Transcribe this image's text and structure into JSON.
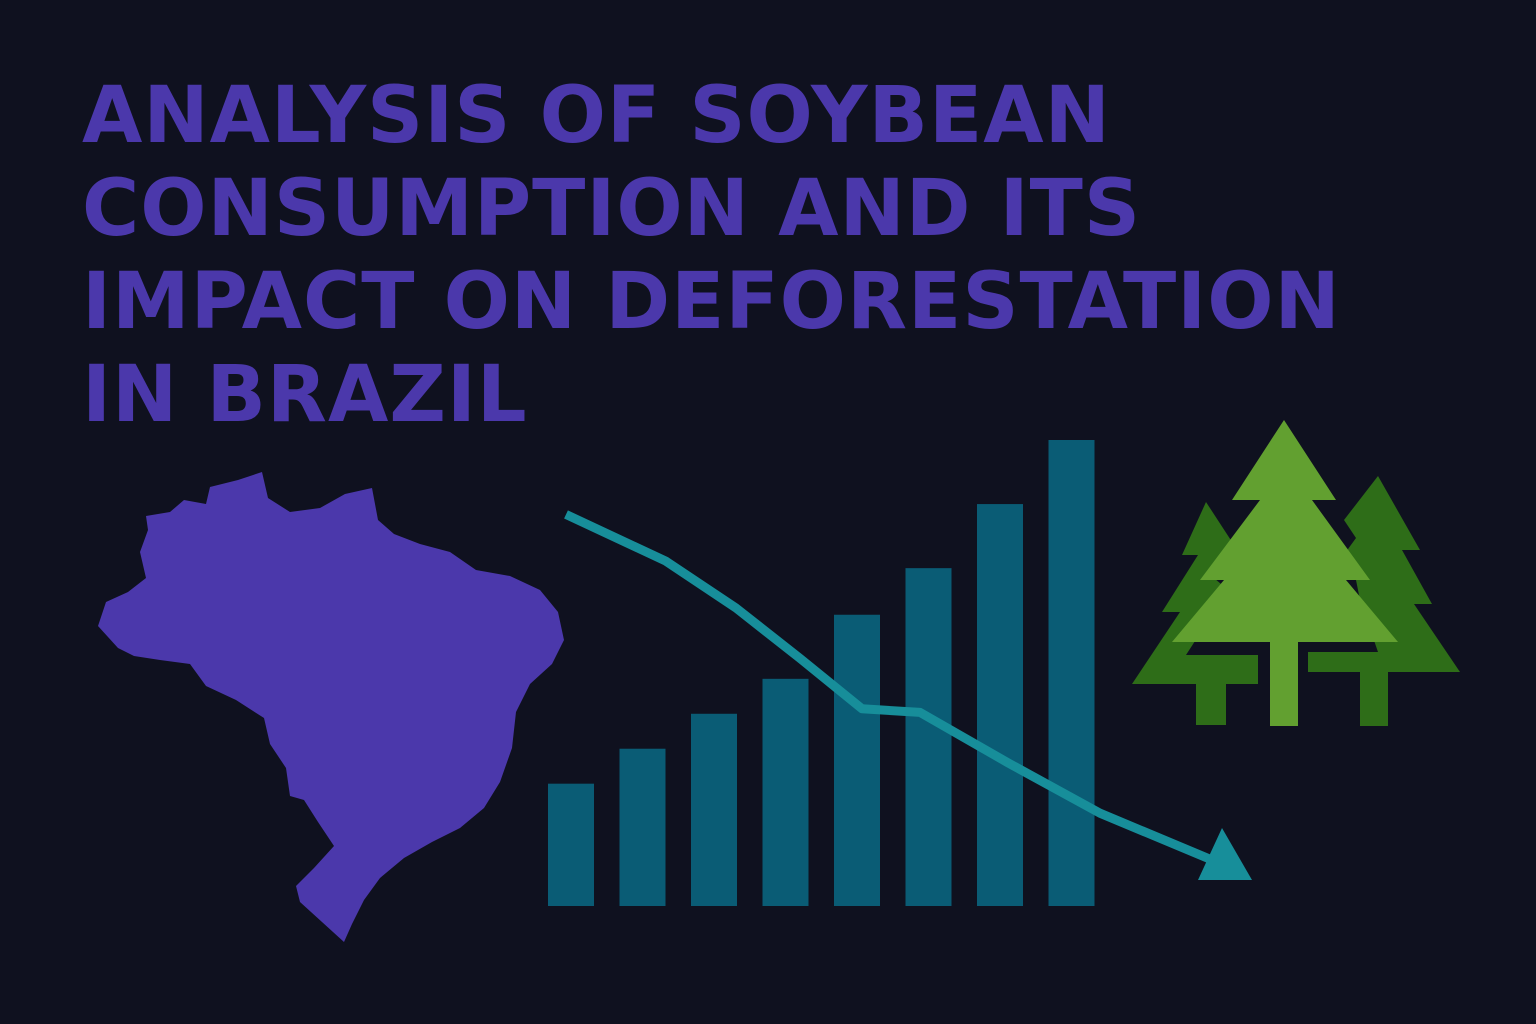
{
  "title": {
    "line1": "ANALYSIS OF SOYBEAN",
    "line2": "CONSUMPTION AND ITS",
    "line3": "IMPACT ON DEFORESTATION",
    "line4": "IN BRAZIL"
  },
  "colors": {
    "background": "#0f111f",
    "title": "#4b38ab",
    "map": "#4b38ab",
    "bars": "#0a5c75",
    "trend_line": "#178e9a",
    "tree_light": "#62a030",
    "tree_dark": "#2e6d18"
  },
  "icons": {
    "map": "brazil-map-icon",
    "trees": "pine-trees-icon",
    "trend": "down-trend-arrow-icon"
  },
  "chart_data": {
    "type": "bar",
    "bar_values": [
      21,
      27,
      33,
      39,
      50,
      58,
      69,
      80
    ],
    "trend_values": [
      96,
      83,
      70,
      56,
      42,
      41,
      27,
      13,
      0
    ],
    "trend_direction": "down",
    "title": "",
    "xlabel": "",
    "ylabel": ""
  }
}
